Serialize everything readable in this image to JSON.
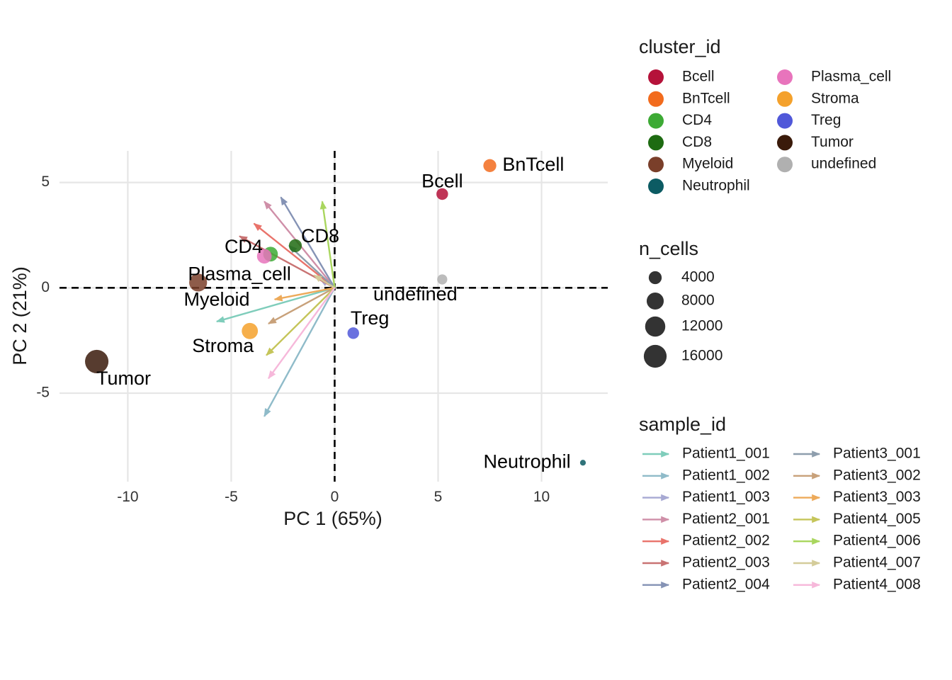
{
  "chart_data": {
    "type": "scatter",
    "xlabel": "PC 1 (65%)",
    "ylabel": "PC 2 (21%)",
    "xlim": [
      -13.3,
      13.2
    ],
    "ylim": [
      -9.2,
      6.5
    ],
    "x_ticks": [
      -10,
      -5,
      0,
      5,
      10
    ],
    "y_ticks": [
      -5,
      0,
      5
    ],
    "grid": true,
    "reference_lines": [
      {
        "axis": "x",
        "value": 0,
        "style": "dashed"
      },
      {
        "axis": "y",
        "value": 0,
        "style": "dashed"
      }
    ],
    "legend_position": "right",
    "points": [
      {
        "cluster": "Bcell",
        "x": 5.2,
        "y": 4.45,
        "n_cells": 3000,
        "label_dx": 0.0,
        "label_dy": 0.55
      },
      {
        "cluster": "BnTcell",
        "x": 7.5,
        "y": 5.8,
        "n_cells": 4000,
        "label_dx": 2.1,
        "label_dy": 0.0
      },
      {
        "cluster": "CD4",
        "x": -3.1,
        "y": 1.6,
        "n_cells": 5500,
        "label_dx": -1.3,
        "label_dy": 0.3
      },
      {
        "cluster": "CD8",
        "x": -1.9,
        "y": 2.0,
        "n_cells": 4000,
        "label_dx": 1.2,
        "label_dy": 0.4
      },
      {
        "cluster": "Myeloid",
        "x": -6.6,
        "y": 0.25,
        "n_cells": 9000,
        "label_dx": 0.9,
        "label_dy": -0.85
      },
      {
        "cluster": "Neutrophil",
        "x": 12.0,
        "y": -8.3,
        "n_cells": 300,
        "label_dx": -2.7,
        "label_dy": 0.0
      },
      {
        "cluster": "Plasma_cell",
        "x": -3.4,
        "y": 1.5,
        "n_cells": 5500,
        "label_dx": -1.2,
        "label_dy": -0.9
      },
      {
        "cluster": "Stroma",
        "x": -4.1,
        "y": -2.05,
        "n_cells": 7000,
        "label_dx": -1.3,
        "label_dy": -0.75
      },
      {
        "cluster": "Treg",
        "x": 0.9,
        "y": -2.15,
        "n_cells": 3000,
        "label_dx": 0.8,
        "label_dy": 0.65
      },
      {
        "cluster": "Tumor",
        "x": -11.5,
        "y": -3.5,
        "n_cells": 17000,
        "label_dx": 1.3,
        "label_dy": -0.85
      },
      {
        "cluster": "undefined",
        "x": 5.2,
        "y": 0.4,
        "n_cells": 2000,
        "label_dx": -1.3,
        "label_dy": -0.75
      }
    ],
    "loadings": [
      {
        "sample": "Patient1_001",
        "x": -5.7,
        "y": -1.6
      },
      {
        "sample": "Patient1_002",
        "x": -3.4,
        "y": -6.1
      },
      {
        "sample": "Patient1_003",
        "x": -0.7,
        "y": 0.4
      },
      {
        "sample": "Patient2_001",
        "x": -3.4,
        "y": 4.1
      },
      {
        "sample": "Patient2_002",
        "x": -3.9,
        "y": 3.05
      },
      {
        "sample": "Patient2_003",
        "x": -4.6,
        "y": 2.45
      },
      {
        "sample": "Patient2_004",
        "x": -2.6,
        "y": 4.3
      },
      {
        "sample": "Patient3_001",
        "x": -2.2,
        "y": 2.0
      },
      {
        "sample": "Patient3_002",
        "x": -3.2,
        "y": -1.7
      },
      {
        "sample": "Patient3_003",
        "x": -2.9,
        "y": -0.55
      },
      {
        "sample": "Patient4_005",
        "x": -3.3,
        "y": -3.2
      },
      {
        "sample": "Patient4_006",
        "x": -0.6,
        "y": 4.1
      },
      {
        "sample": "Patient4_007",
        "x": -1.0,
        "y": 0.6
      },
      {
        "sample": "Patient4_008",
        "x": -3.2,
        "y": -4.3
      }
    ]
  },
  "legend_cluster": {
    "title": "cluster_id",
    "items": [
      {
        "label": "Bcell",
        "color": "#B5123A"
      },
      {
        "label": "BnTcell",
        "color": "#F26B1D"
      },
      {
        "label": "CD4",
        "color": "#3DAA35"
      },
      {
        "label": "CD8",
        "color": "#1E6B12"
      },
      {
        "label": "Myeloid",
        "color": "#7A3F2A"
      },
      {
        "label": "Neutrophil",
        "color": "#0C5B63"
      },
      {
        "label": "Plasma_cell",
        "color": "#E874BC"
      },
      {
        "label": "Stroma",
        "color": "#F4A12C"
      },
      {
        "label": "Treg",
        "color": "#5058D9"
      },
      {
        "label": "Tumor",
        "color": "#3A1A0A"
      },
      {
        "label": "undefined",
        "color": "#B0B0B0"
      }
    ]
  },
  "legend_size": {
    "title": "n_cells",
    "items": [
      {
        "label": "4000",
        "value": 4000
      },
      {
        "label": "8000",
        "value": 8000
      },
      {
        "label": "12000",
        "value": 12000
      },
      {
        "label": "16000",
        "value": 16000
      }
    ]
  },
  "legend_sample": {
    "title": "sample_id",
    "items": [
      {
        "label": "Patient1_001",
        "color": "#7FCDBB"
      },
      {
        "label": "Patient1_002",
        "color": "#8FBBC9"
      },
      {
        "label": "Patient1_003",
        "color": "#A7A9D3"
      },
      {
        "label": "Patient2_001",
        "color": "#CF8FA8"
      },
      {
        "label": "Patient2_002",
        "color": "#E9736B"
      },
      {
        "label": "Patient2_003",
        "color": "#C97373"
      },
      {
        "label": "Patient2_004",
        "color": "#8593B5"
      },
      {
        "label": "Patient3_001",
        "color": "#8E9EAD"
      },
      {
        "label": "Patient3_002",
        "color": "#C8A17A"
      },
      {
        "label": "Patient3_003",
        "color": "#EDAA5A"
      },
      {
        "label": "Patient4_005",
        "color": "#C5C55A"
      },
      {
        "label": "Patient4_006",
        "color": "#A9D65E"
      },
      {
        "label": "Patient4_007",
        "color": "#D4CC9A"
      },
      {
        "label": "Patient4_008",
        "color": "#F6B8DA"
      }
    ]
  }
}
